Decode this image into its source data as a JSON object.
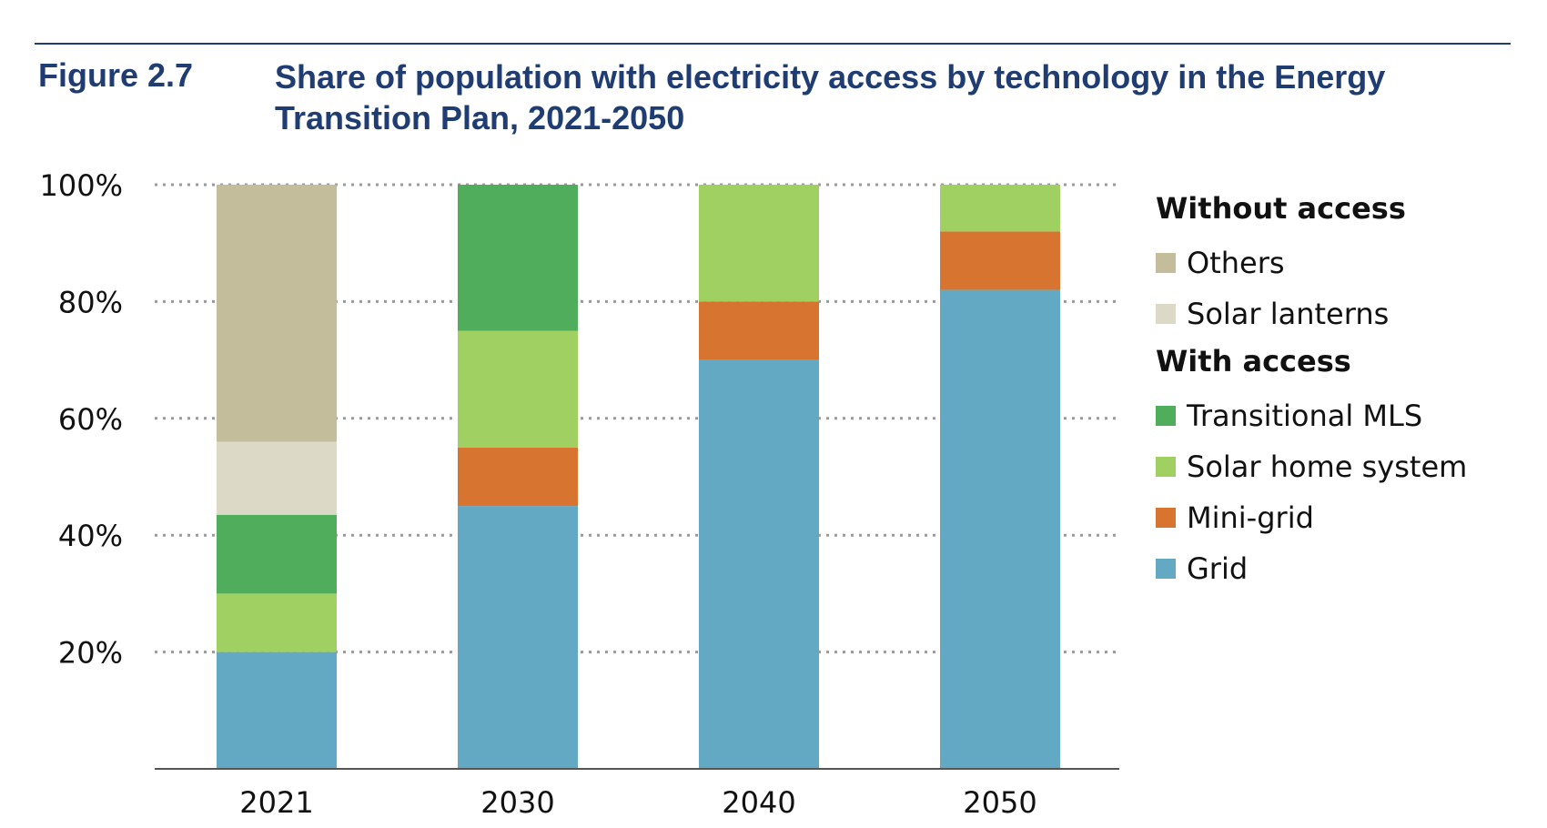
{
  "figure": {
    "label": "Figure 2.7",
    "title": "Share of population with electricity access by technology in the Energy Transition Plan, 2021-2050"
  },
  "legend": {
    "groups": [
      {
        "title": "Without access",
        "items": [
          {
            "label": "Others",
            "color": "#c4bd9b"
          },
          {
            "label": "Solar lanterns",
            "color": "#dcdac6"
          }
        ]
      },
      {
        "title": "With access",
        "items": [
          {
            "label": "Transitional MLS",
            "color": "#4fad5b"
          },
          {
            "label": "Solar home system",
            "color": "#a0cf62"
          },
          {
            "label": "Mini-grid",
            "color": "#d77430"
          },
          {
            "label": "Grid",
            "color": "#63a9c4"
          }
        ]
      }
    ]
  },
  "chart_data": {
    "type": "bar",
    "stacked": true,
    "categories": [
      "2021",
      "2030",
      "2040",
      "2050"
    ],
    "series": [
      {
        "name": "Grid",
        "color": "#63a9c4",
        "values": [
          20,
          45,
          70,
          82
        ]
      },
      {
        "name": "Solar home system",
        "color": "#a0cf62",
        "values": [
          10,
          0,
          0,
          0
        ]
      },
      {
        "name": "Transitional MLS",
        "color": "#4fad5b",
        "values": [
          13.5,
          0,
          0,
          0
        ]
      },
      {
        "name": "Solar lanterns",
        "color": "#dcdac6",
        "values": [
          12.5,
          0,
          0,
          0
        ]
      },
      {
        "name": "Others",
        "color": "#c4bd9b",
        "values": [
          44,
          0,
          0,
          0
        ]
      },
      {
        "name": "Mini-grid",
        "color": "#d77430",
        "values": [
          0,
          10,
          10,
          10
        ]
      },
      {
        "name": "Solar home system",
        "color": "#a0cf62",
        "values": [
          0,
          20,
          20,
          8
        ]
      },
      {
        "name": "Transitional MLS",
        "color": "#4fad5b",
        "values": [
          0,
          25,
          0,
          0
        ]
      }
    ],
    "yticks": [
      "20%",
      "40%",
      "60%",
      "80%",
      "100%"
    ],
    "ytick_values": [
      20,
      40,
      60,
      80,
      100
    ],
    "ylim": [
      0,
      100
    ],
    "grid": true,
    "legend_position": "right"
  }
}
